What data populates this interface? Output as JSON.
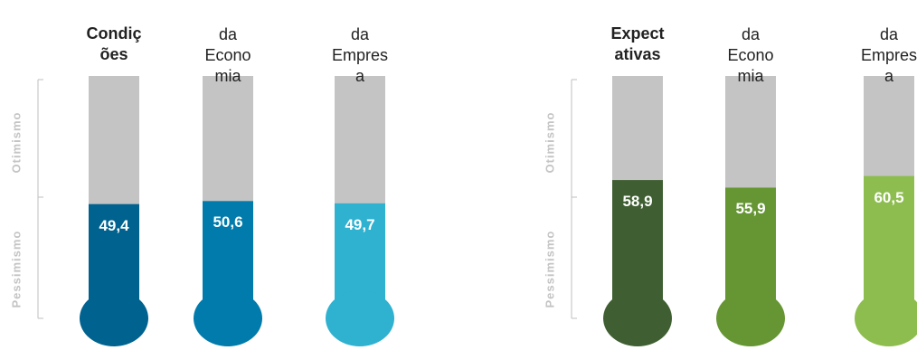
{
  "axis_words": {
    "top": "Otimismo",
    "bottom": "Pessimismo"
  },
  "chart_data": [
    {
      "type": "bar",
      "ylim": [
        0,
        100
      ],
      "categories": [
        "Condições",
        "da Economia",
        "da Empresa"
      ],
      "values": [
        49.4,
        50.6,
        49.7
      ],
      "value_labels": [
        "49,4",
        "50,6",
        "49,7"
      ],
      "colors": [
        "#00628f",
        "#007bab",
        "#2fb1d0"
      ],
      "header_labels": [
        [
          "Condiç",
          "ões"
        ],
        [
          "da",
          "Econo",
          "mia"
        ],
        [
          "da",
          "Empres",
          "a"
        ]
      ]
    },
    {
      "type": "bar",
      "ylim": [
        0,
        100
      ],
      "categories": [
        "Expectativas",
        "da Economia",
        "da Empresa"
      ],
      "values": [
        58.9,
        55.9,
        60.5
      ],
      "value_labels": [
        "58,9",
        "55,9",
        "60,5"
      ],
      "colors": [
        "#3f5f32",
        "#669634",
        "#8dbd4e"
      ],
      "header_labels": [
        [
          "Expect",
          "ativas"
        ],
        [
          "da",
          "Econo",
          "mia"
        ],
        [
          "da",
          "Empres",
          "a"
        ]
      ]
    }
  ]
}
